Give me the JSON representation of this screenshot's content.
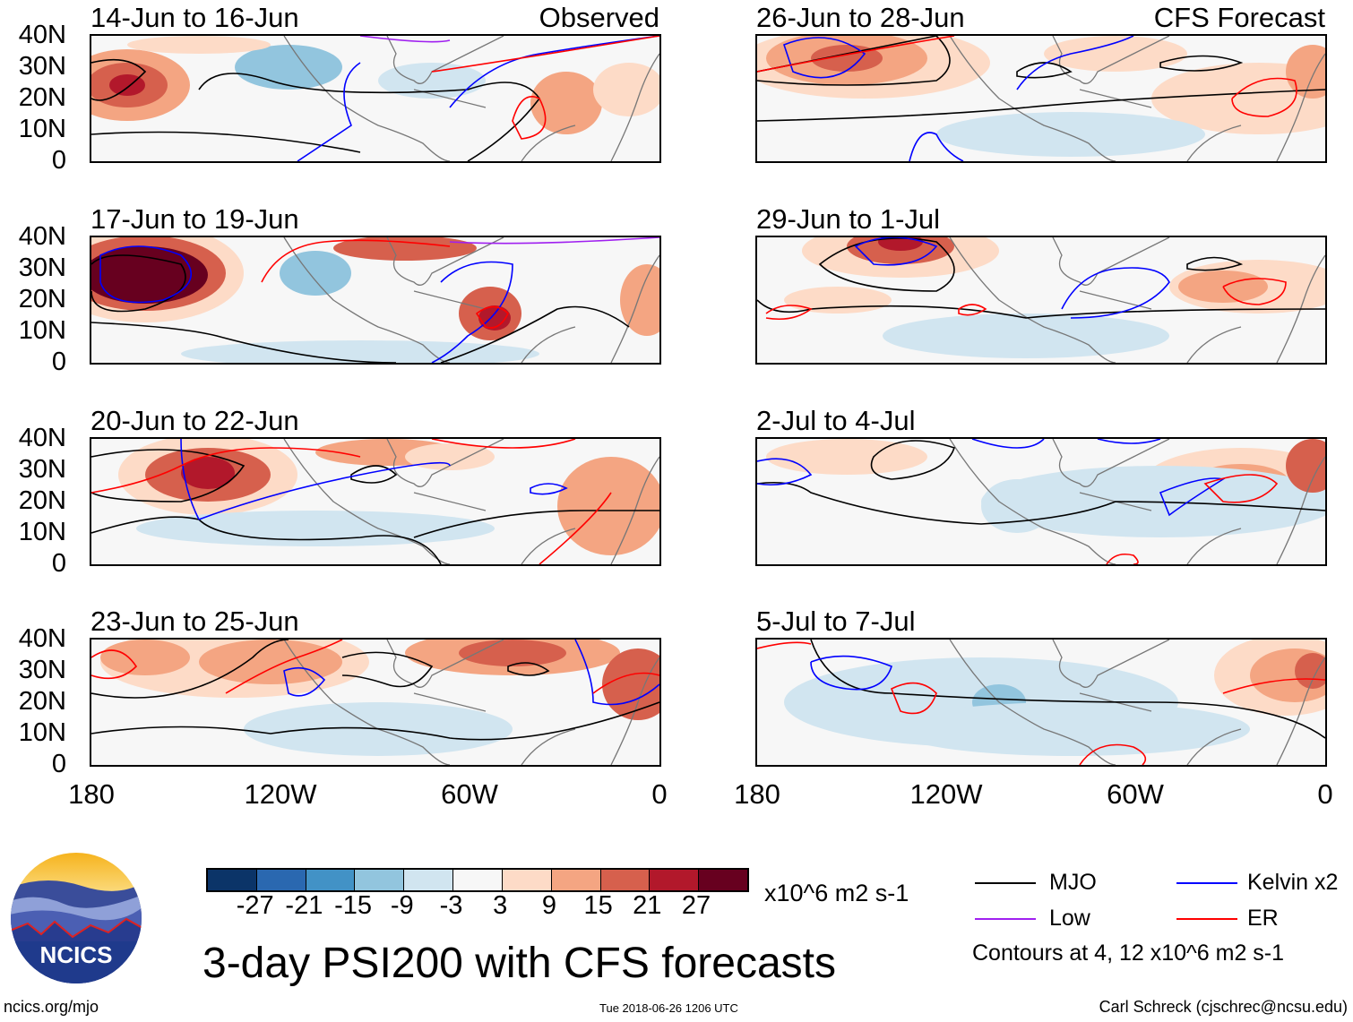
{
  "figure_title": "3-day PSI200 with CFS forecasts",
  "panels": [
    {
      "title": "14-Jun to 16-Jun",
      "tag": "Observed"
    },
    {
      "title": "17-Jun to 19-Jun"
    },
    {
      "title": "20-Jun to 22-Jun"
    },
    {
      "title": "23-Jun to 25-Jun"
    },
    {
      "title": "26-Jun to 28-Jun",
      "tag": "CFS Forecast"
    },
    {
      "title": "29-Jun to 1-Jul"
    },
    {
      "title": "2-Jul to 4-Jul"
    },
    {
      "title": "5-Jul to 7-Jul"
    }
  ],
  "lat_labels": [
    "40N",
    "30N",
    "20N",
    "10N",
    "0"
  ],
  "lon_labels": [
    "180",
    "120W",
    "60W",
    "0"
  ],
  "colorbar": {
    "labels": [
      "-27",
      "-21",
      "-15",
      "-9",
      "-3",
      "3",
      "9",
      "15",
      "21",
      "27"
    ],
    "colors": [
      "#0b3468",
      "#2a68b0",
      "#4292c6",
      "#92c5de",
      "#d1e5f0",
      "#f7f7f7",
      "#fddbc7",
      "#f4a582",
      "#d6604d",
      "#b2182b",
      "#67001f"
    ],
    "units": "x10^6 m2 s-1"
  },
  "legend": {
    "items": [
      {
        "label": "MJO",
        "color": "#000000"
      },
      {
        "label": "Kelvin x2",
        "color": "#0000ff"
      },
      {
        "label": "Low",
        "color": "#a020f0"
      },
      {
        "label": "ER",
        "color": "#ff0000"
      }
    ],
    "contours_note": "Contours at 4, 12 x10^6 m2 s-1"
  },
  "logo_text": "NCICS",
  "footer": {
    "url": "ncics.org/mjo",
    "timestamp": "Tue 2018-06-26 1206 UTC",
    "credit": "Carl Schreck (cjschrec@ncsu.edu)"
  }
}
